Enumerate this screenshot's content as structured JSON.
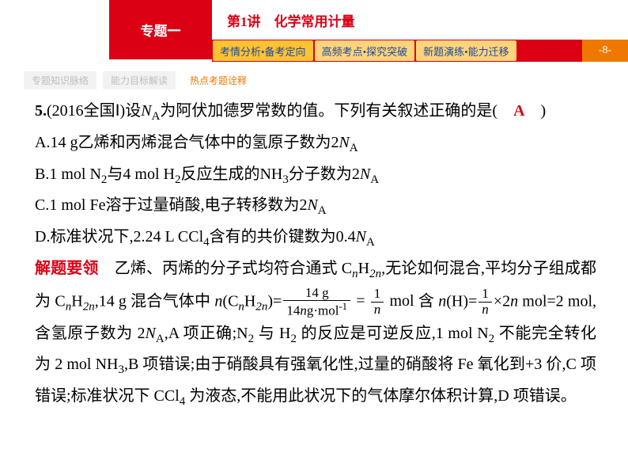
{
  "header": {
    "topic_label": "专题一",
    "lecture_title": "第1讲　化学常用计量",
    "page_number": "-8-",
    "tabs": [
      {
        "label": "考情分析•备考定向",
        "active": true
      },
      {
        "label": "高频考点•探究突破",
        "active": false
      },
      {
        "label": "新题演练•能力迁移",
        "active": false
      }
    ]
  },
  "subtabs": [
    {
      "label": "专题知识脉络",
      "active": false
    },
    {
      "label": "能力目标解读",
      "active": false
    },
    {
      "label": "热点考题诠释",
      "active": true
    }
  ],
  "question": {
    "number": "5.",
    "source": "(2016全国Ⅰ)设",
    "na_def": "为阿伏加德罗常数的值。下列有关叙述正确的是(",
    "answer": "A",
    "close": ")",
    "option_a_pre": "A.14 g乙烯和丙烯混合气体中的氢原子数为2",
    "option_b_pre": "B.1 mol N",
    "option_b_mid": "与4 mol H",
    "option_b_post": "反应生成的NH",
    "option_b_end": "分子数为2",
    "option_c_pre": "C.1 mol Fe溶于过量硝酸,电子转移数为2",
    "option_d_pre": "D.标准状况下,2.24 L CCl",
    "option_d_post": "含有的共价键数为0.4"
  },
  "solution": {
    "label": "解题要领",
    "text1": "乙烯、丙烯的分子式均符合通式 C",
    "text1b": "H",
    "text1c": ",无论如何混合,平均分子组成都为 C",
    "text1d": "H",
    "text1e": ",14 g 混合气体中 ",
    "ncnh": "(C",
    "ncnh2": "H",
    "ncnh3": ")=",
    "frac1_num": "14 g",
    "frac1_den_pre": "14",
    "frac1_den_post": "g·mol",
    "eq": " = ",
    "frac2_num": "1",
    "frac2_den": "n",
    "mol1": " mol",
    "text2a": "含 ",
    "text2b": "(H)=",
    "frac3_num": "1",
    "frac3_den": "n",
    "text2c": "×2",
    "text2d": " mol=2 mol,含氢原子数为 2",
    "text2e": ",A 项正确;N",
    "text2f": " 与 H",
    "text2g": " 的反应是可逆反应,1 mol N",
    "text2h": " 不能完全转化为 2 mol NH",
    "text2i": ",B 项错误;由于硝酸具有强氧化性,过量的硝酸将 Fe 氧化到+3 价,C 项错误;标准状况下 CCl",
    "text2j": " 为液态,不能用此状况下的气体摩尔体积计算,D 项错误。"
  },
  "symbols": {
    "NA_N": "N",
    "NA_A": "A",
    "n": "n",
    "two_n": "2n",
    "sub2": "2",
    "sub3": "3",
    "sub4": "4",
    "sup_neg1": "-1"
  },
  "colors": {
    "red": "#dc0015",
    "orange": "#ef7900",
    "tab_bg": "#ffd37a",
    "tab_active": "#ffc232",
    "tab_text": "#1b4aa0"
  }
}
